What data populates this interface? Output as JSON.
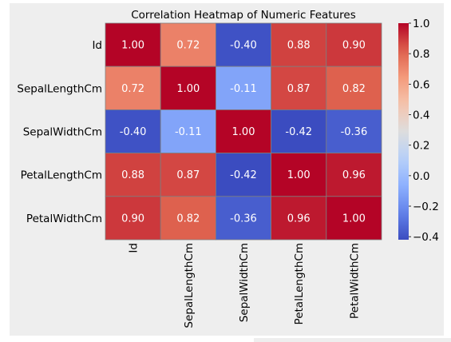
{
  "chart_data": {
    "type": "heatmap",
    "title": "Correlation Heatmap of Numeric Features",
    "xlabel": "",
    "ylabel": "",
    "row_labels": [
      "Id",
      "SepalLengthCm",
      "SepalWidthCm",
      "PetalLengthCm",
      "PetalWidthCm"
    ],
    "col_labels": [
      "Id",
      "SepalLengthCm",
      "SepalWidthCm",
      "PetalLengthCm",
      "PetalWidthCm"
    ],
    "values": [
      [
        1.0,
        0.72,
        -0.4,
        0.88,
        0.9
      ],
      [
        0.72,
        1.0,
        -0.11,
        0.87,
        0.82
      ],
      [
        -0.4,
        -0.11,
        1.0,
        -0.42,
        -0.36
      ],
      [
        0.88,
        0.87,
        -0.42,
        1.0,
        0.96
      ],
      [
        0.9,
        0.82,
        -0.36,
        0.96,
        1.0
      ]
    ],
    "value_labels": [
      [
        "1.00",
        "0.72",
        "-0.40",
        "0.88",
        "0.90"
      ],
      [
        "0.72",
        "1.00",
        "-0.11",
        "0.87",
        "0.82"
      ],
      [
        "-0.40",
        "-0.11",
        "1.00",
        "-0.42",
        "-0.36"
      ],
      [
        "0.88",
        "0.87",
        "-0.42",
        "1.00",
        "0.96"
      ],
      [
        "0.90",
        "0.82",
        "-0.36",
        "0.96",
        "1.00"
      ]
    ],
    "colormap": "coolwarm",
    "colorbar": {
      "range": [
        -0.42,
        1.0
      ],
      "ticks": [
        1.0,
        0.8,
        0.6,
        0.4,
        0.2,
        0.0,
        -0.2,
        -0.4
      ],
      "tick_labels": [
        "1.0",
        "0.8",
        "0.6",
        "0.4",
        "0.2",
        "0.0",
        "−0.2",
        "−0.4"
      ]
    },
    "grid": false,
    "legend": "colorbar-right"
  },
  "colors": {
    "background": "#eeeeee",
    "cell_border": "#7f7f7f",
    "annotation_text": "#ffffff",
    "cool_end": "#3b4cc0",
    "neutral": "#dddddd",
    "warm_end": "#b40426"
  }
}
